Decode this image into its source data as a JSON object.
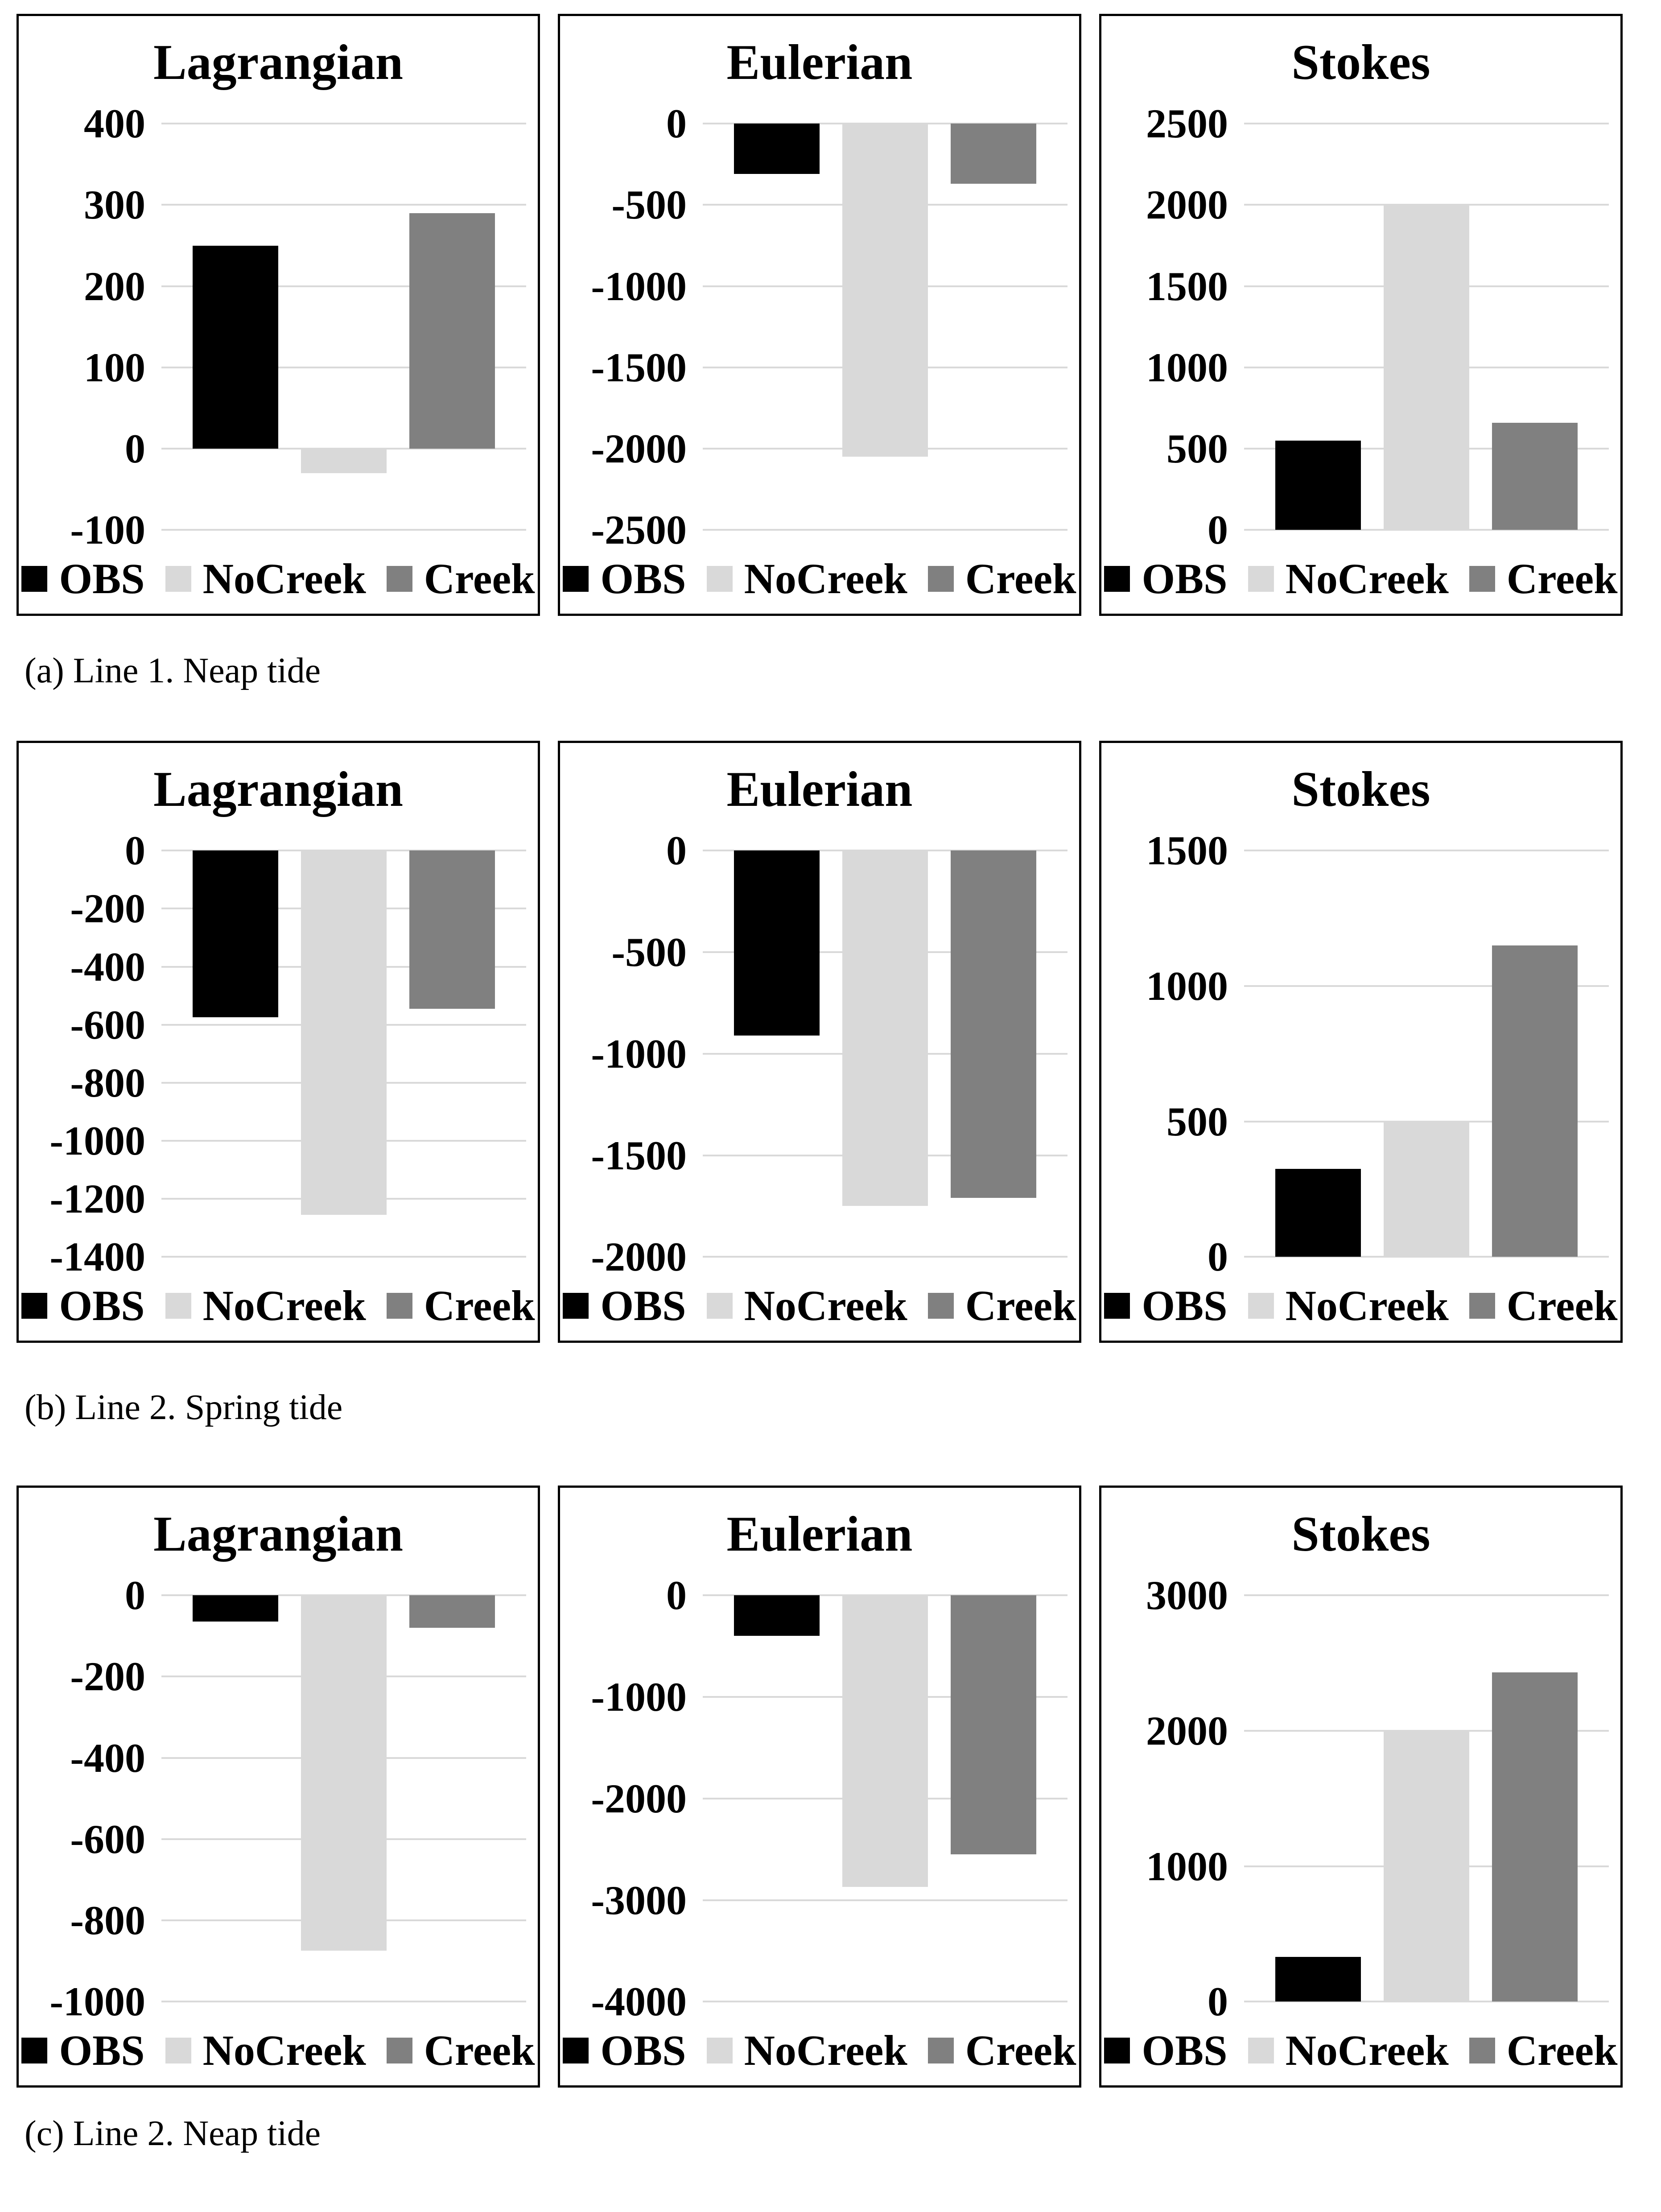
{
  "chart_data": [
    {
      "type": "bar",
      "group": "(a) Line 1. Neap tide",
      "title": "Lagrangian",
      "categories": [
        "OBS",
        "NoCreek",
        "Creek"
      ],
      "values": [
        250,
        -30,
        290
      ],
      "yticks": [
        400,
        300,
        200,
        100,
        0,
        -100
      ],
      "ylim": [
        -100,
        400
      ],
      "grid": true,
      "legend_position": "bottom"
    },
    {
      "type": "bar",
      "group": "(a) Line 1. Neap tide",
      "title": "Eulerian",
      "categories": [
        "OBS",
        "NoCreek",
        "Creek"
      ],
      "values": [
        -310,
        -2050,
        -370
      ],
      "yticks": [
        0,
        -500,
        -1000,
        -1500,
        -2000,
        -2500
      ],
      "ylim": [
        -2500,
        0
      ],
      "grid": true,
      "legend_position": "bottom"
    },
    {
      "type": "bar",
      "group": "(a) Line 1. Neap tide",
      "title": "Stokes",
      "categories": [
        "OBS",
        "NoCreek",
        "Creek"
      ],
      "values": [
        550,
        2000,
        660
      ],
      "yticks": [
        2500,
        2000,
        1500,
        1000,
        500,
        0
      ],
      "ylim": [
        0,
        2500
      ],
      "grid": true,
      "legend_position": "bottom"
    },
    {
      "type": "bar",
      "group": "(b) Line 2. Spring tide",
      "title": "Lagrangian",
      "categories": [
        "OBS",
        "NoCreek",
        "Creek"
      ],
      "values": [
        -575,
        -1255,
        -545
      ],
      "yticks": [
        0,
        -200,
        -400,
        -600,
        -800,
        -1000,
        -1200,
        -1400
      ],
      "ylim": [
        -1400,
        0
      ],
      "grid": true,
      "legend_position": "bottom"
    },
    {
      "type": "bar",
      "group": "(b) Line 2. Spring tide",
      "title": "Eulerian",
      "categories": [
        "OBS",
        "NoCreek",
        "Creek"
      ],
      "values": [
        -910,
        -1750,
        -1710
      ],
      "yticks": [
        0,
        -500,
        -1000,
        -1500,
        -2000
      ],
      "ylim": [
        -2000,
        0
      ],
      "grid": true,
      "legend_position": "bottom"
    },
    {
      "type": "bar",
      "group": "(b) Line 2. Spring tide",
      "title": "Stokes",
      "categories": [
        "OBS",
        "NoCreek",
        "Creek"
      ],
      "values": [
        325,
        500,
        1150
      ],
      "yticks": [
        1500,
        1000,
        500,
        0
      ],
      "ylim": [
        0,
        1500
      ],
      "grid": true,
      "legend_position": "bottom"
    },
    {
      "type": "bar",
      "group": "(c) Line 2. Neap tide",
      "title": "Lagrangian",
      "categories": [
        "OBS",
        "NoCreek",
        "Creek"
      ],
      "values": [
        -65,
        -875,
        -80
      ],
      "yticks": [
        0,
        -200,
        -400,
        -600,
        -800,
        -1000
      ],
      "ylim": [
        -1000,
        0
      ],
      "grid": true,
      "legend_position": "bottom"
    },
    {
      "type": "bar",
      "group": "(c) Line 2. Neap tide",
      "title": "Eulerian",
      "categories": [
        "OBS",
        "NoCreek",
        "Creek"
      ],
      "values": [
        -400,
        -2870,
        -2550
      ],
      "yticks": [
        0,
        -1000,
        -2000,
        -3000,
        -4000
      ],
      "ylim": [
        -4000,
        0
      ],
      "grid": true,
      "legend_position": "bottom"
    },
    {
      "type": "bar",
      "group": "(c) Line 2. Neap tide",
      "title": "Stokes",
      "categories": [
        "OBS",
        "NoCreek",
        "Creek"
      ],
      "values": [
        330,
        2000,
        2430
      ],
      "yticks": [
        3000,
        2000,
        1000,
        0
      ],
      "ylim": [
        0,
        3000
      ],
      "grid": true,
      "legend_position": "bottom"
    }
  ],
  "figure": {
    "captions": [
      "(a) Line 1. Neap tide",
      "(b) Line 2. Spring tide",
      "(c) Line 2. Neap tide"
    ],
    "legend": {
      "items": [
        {
          "label": "OBS",
          "color": "#000000"
        },
        {
          "label": "NoCreek",
          "color": "#d9d9d9"
        },
        {
          "label": "Creek",
          "color": "#808080"
        }
      ]
    },
    "colors": {
      "gridline": "#d9d9d9",
      "border": "#000000",
      "background": "#ffffff"
    }
  }
}
